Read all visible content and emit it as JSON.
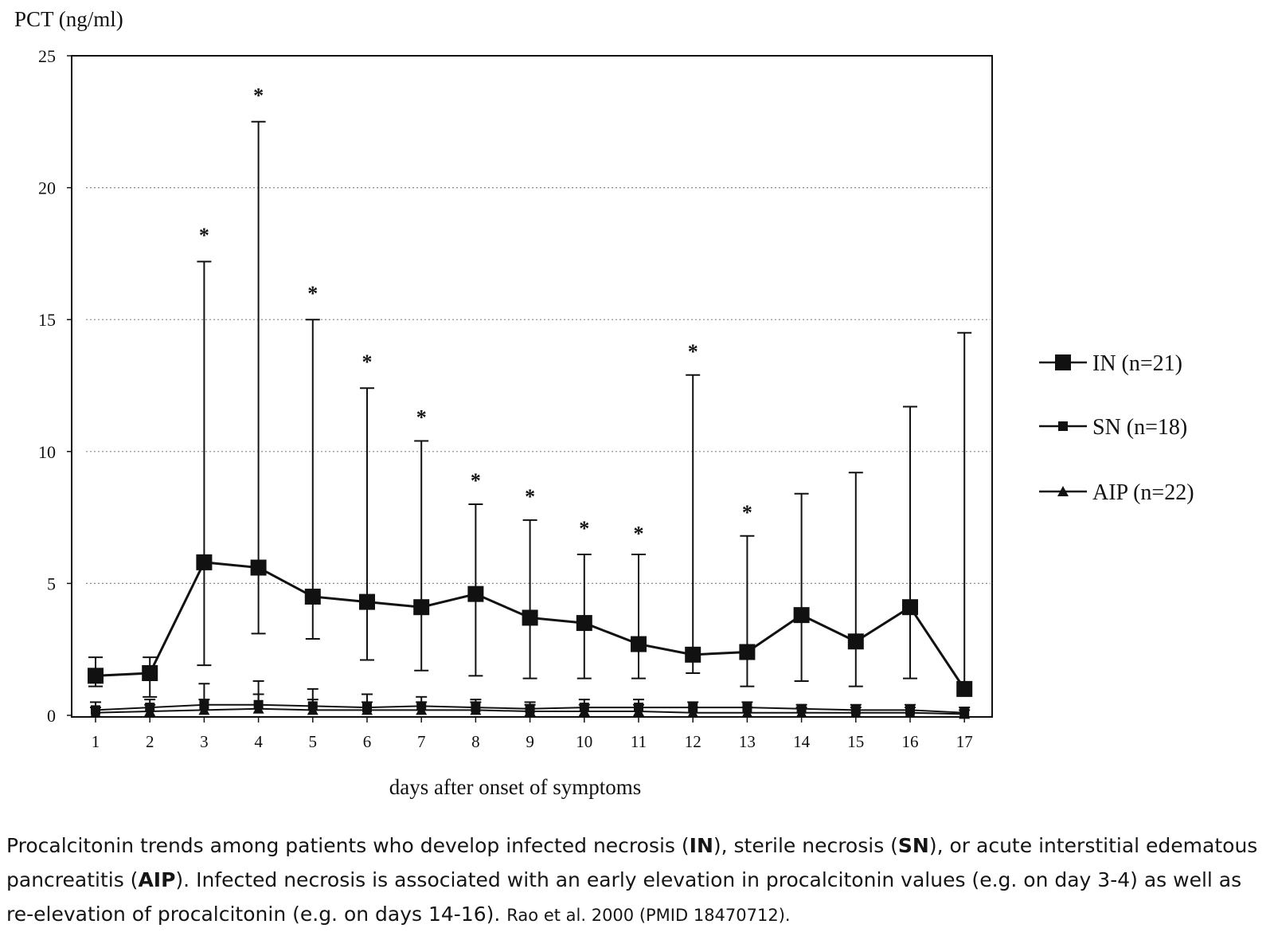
{
  "chart_data": {
    "type": "line",
    "ylabel": "PCT (ng/ml)",
    "xlabel": "days after onset of symptoms",
    "ylim": [
      0,
      25
    ],
    "yticks": [
      0,
      5,
      10,
      15,
      20,
      25
    ],
    "categories": [
      "1",
      "2",
      "3",
      "4",
      "5",
      "6",
      "7",
      "8",
      "9",
      "10",
      "11",
      "12",
      "13",
      "14",
      "15",
      "16",
      "17"
    ],
    "grid": "horizontal dotted",
    "legend_position": "right",
    "significance_marker": "*",
    "series": [
      {
        "name": "IN (n=21)",
        "marker": "large-square",
        "values": [
          1.5,
          1.6,
          5.8,
          5.6,
          4.5,
          4.3,
          4.1,
          4.6,
          3.7,
          3.5,
          2.7,
          2.3,
          2.4,
          3.8,
          2.8,
          4.1,
          1.0
        ],
        "error_upper": [
          2.2,
          2.2,
          17.2,
          22.5,
          15.0,
          12.4,
          10.4,
          8.0,
          7.4,
          6.1,
          6.1,
          12.9,
          6.8,
          8.4,
          9.2,
          11.7,
          14.5
        ],
        "error_lower": [
          1.1,
          0.7,
          1.9,
          3.1,
          2.9,
          2.1,
          1.7,
          1.5,
          1.4,
          1.4,
          1.4,
          1.6,
          1.1,
          1.3,
          1.1,
          1.4,
          null
        ],
        "significant_days": [
          "3",
          "4",
          "5",
          "6",
          "7",
          "8",
          "9",
          "10",
          "11",
          "12",
          "13"
        ],
        "marker_heights": [
          18.2,
          23.5,
          16.0,
          13.4,
          11.3,
          8.9,
          8.3,
          7.1,
          6.9,
          13.8,
          7.7
        ]
      },
      {
        "name": "SN (n=18)",
        "marker": "small-square",
        "values": [
          0.2,
          0.3,
          0.4,
          0.4,
          0.35,
          0.3,
          0.35,
          0.3,
          0.25,
          0.3,
          0.3,
          0.3,
          0.3,
          0.25,
          0.2,
          0.2,
          0.1
        ],
        "error_upper": [
          0.5,
          0.6,
          1.2,
          1.3,
          1.0,
          0.8,
          0.7,
          0.6,
          0.5,
          0.6,
          0.6,
          0.5,
          0.5,
          0.4,
          0.4,
          0.4,
          0.3
        ]
      },
      {
        "name": "AIP (n=22)",
        "marker": "triangle",
        "values": [
          0.1,
          0.15,
          0.2,
          0.25,
          0.2,
          0.2,
          0.2,
          0.2,
          0.15,
          0.15,
          0.15,
          0.1,
          0.1,
          0.1,
          0.1,
          0.1,
          0.05
        ],
        "error_upper": [
          0.3,
          0.4,
          0.6,
          0.8,
          0.6,
          0.5,
          0.5,
          0.5,
          0.4,
          0.4,
          0.4,
          0.3,
          0.3,
          0.3,
          0.3,
          0.3,
          0.2
        ]
      }
    ]
  },
  "caption": {
    "p1": "Procalcitonin trends among patients who develop infected necrosis (",
    "b1": "IN",
    "p2": "), sterile necrosis (",
    "b2": "SN",
    "p3": "), or acute interstitial edematous pancreatitis (",
    "b3": "AIP",
    "p4": ").  Infected necrosis is associated with an early elevation in procalcitonin values (e.g. on day 3-4) as well as re-elevation of procalcitonin (e.g. on days 14-16).",
    "citation": "Rao et al. 2000 (PMID 18470712)."
  },
  "colors": {
    "ink": "#111111",
    "grid": "#888888",
    "background": "#ffffff"
  }
}
